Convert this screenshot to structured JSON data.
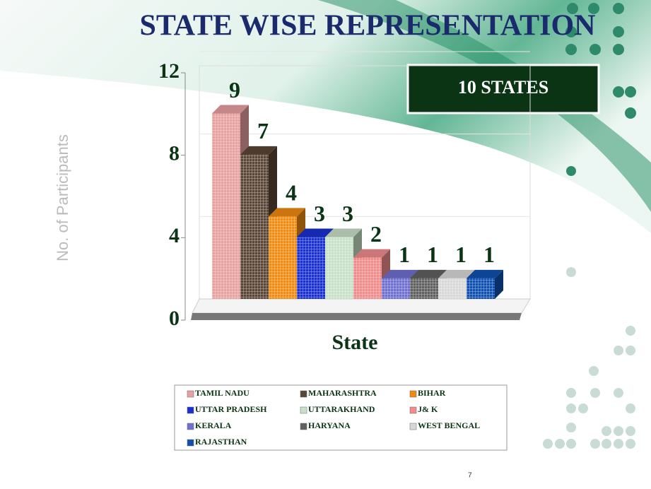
{
  "chart_data": {
    "type": "bar3d",
    "title": "STATE WISE REPRESENTATION",
    "badge": "10 STATES",
    "y_label": "No. of Participants",
    "x_label": "State",
    "page_number": "7",
    "categories": [
      "TAMIL NADU",
      "MAHARASHTRA",
      "BIHAR",
      "UTTAR PRADESH",
      "UTTARAKHAND",
      "J& K",
      "KERALA",
      "HARYANA",
      "WEST BENGAL",
      "RAJASTHAN"
    ],
    "values": [
      9,
      7,
      4,
      3,
      3,
      2,
      1,
      1,
      1,
      1
    ],
    "colors": [
      "#e8a0a0",
      "#5a4636",
      "#f08a10",
      "#1a30d0",
      "#c8e0c8",
      "#f08c8c",
      "#7070d0",
      "#606060",
      "#d8d8d8",
      "#1050b0"
    ],
    "ylim": [
      0,
      12
    ],
    "yticks": [
      0,
      4,
      8,
      12
    ],
    "grid": true
  }
}
